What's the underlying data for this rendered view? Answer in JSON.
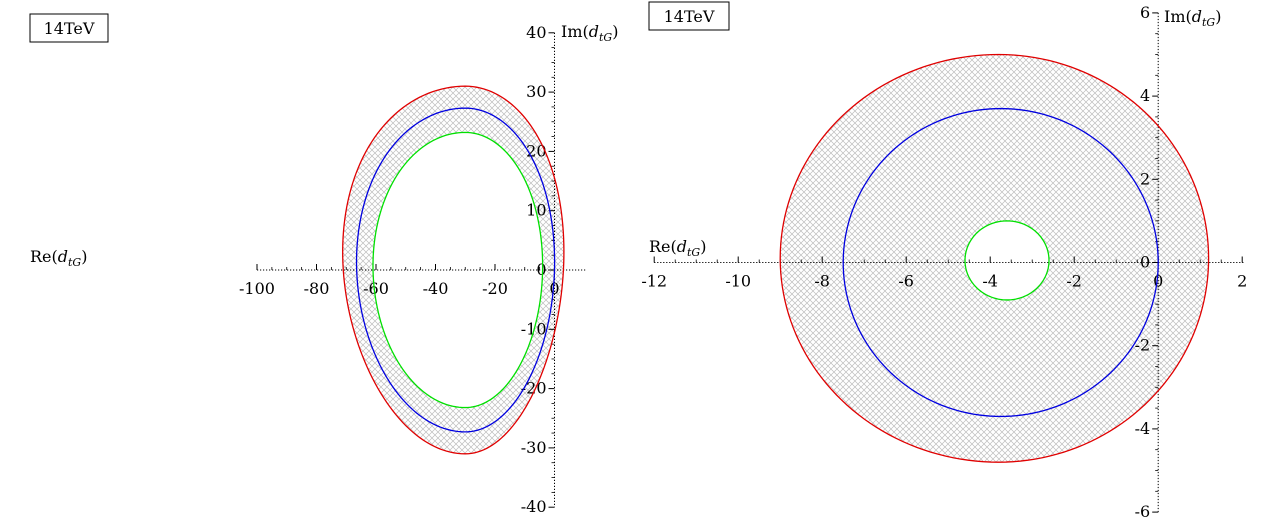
{
  "chart_data": [
    {
      "type": "contour",
      "tag": "14TeV",
      "xlabel": "Re(d_tG)",
      "ylabel": "Im(d_tG)",
      "xlim": [
        -100,
        10
      ],
      "ylim": [
        -40,
        40
      ],
      "xticks": [
        -100,
        -80,
        -60,
        -40,
        -20,
        0
      ],
      "yticks": [
        -40,
        -30,
        -20,
        -10,
        0,
        10,
        20,
        30,
        40
      ],
      "tick_labels_x": [
        "-100",
        "-80",
        "-60",
        "-40",
        "-20",
        "0"
      ],
      "tick_labels_y": [
        "-40",
        "-30",
        "-20",
        "-10",
        "0",
        "10",
        "20",
        "30",
        "40"
      ],
      "hatch_band": {
        "between": [
          "outer",
          "inner"
        ]
      },
      "curves": [
        {
          "id": "outer",
          "color": "#e00000",
          "x_range": [
            -71,
            3
          ],
          "y_range": [
            -31,
            31
          ]
        },
        {
          "id": "middle",
          "color": "#0000e0",
          "x_range": [
            -66.5,
            0
          ],
          "y_range": [
            -27.3,
            27.3
          ]
        },
        {
          "id": "inner",
          "color": "#00e000",
          "x_range": [
            -61,
            -4
          ],
          "y_range": [
            -23.2,
            23.2
          ]
        }
      ]
    },
    {
      "type": "contour",
      "tag": "14TeV",
      "xlabel": "Re(d_tG)",
      "ylabel": "Im(d_tG)",
      "xlim": [
        -12,
        2
      ],
      "ylim": [
        -6,
        6
      ],
      "xticks": [
        -12,
        -10,
        -8,
        -6,
        -4,
        -2,
        0,
        2
      ],
      "yticks": [
        -6,
        -4,
        -2,
        0,
        2,
        4,
        6
      ],
      "tick_labels_x": [
        "-12",
        "-10",
        "-8",
        "-6",
        "-4",
        "-2",
        "0",
        "2"
      ],
      "tick_labels_y": [
        "-6",
        "-4",
        "-2",
        "0",
        "2",
        "4",
        "6"
      ],
      "hatch_band": {
        "between": [
          "outer",
          "inner"
        ]
      },
      "curves": [
        {
          "id": "outer",
          "color": "#e00000",
          "x_range": [
            -9.0,
            1.2
          ],
          "y_range": [
            -4.8,
            5.0
          ]
        },
        {
          "id": "middle",
          "color": "#0000e0",
          "x_range": [
            -7.5,
            0.0
          ],
          "y_range": [
            -3.7,
            3.7
          ]
        },
        {
          "id": "inner",
          "color": "#00e000",
          "x_range": [
            -4.6,
            -2.6
          ],
          "y_range": [
            -0.9,
            1.0
          ]
        }
      ]
    }
  ]
}
